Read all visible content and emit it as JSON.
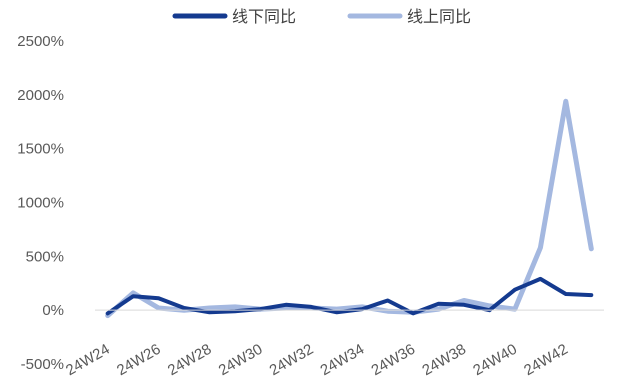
{
  "chart_data": {
    "type": "line",
    "categories": [
      "24W24",
      "24W25",
      "24W26",
      "24W27",
      "24W28",
      "24W29",
      "24W30",
      "24W31",
      "24W32",
      "24W33",
      "24W34",
      "24W35",
      "24W36",
      "24W37",
      "24W38",
      "24W39",
      "24W40",
      "24W41",
      "24W42",
      "24W43"
    ],
    "x_tick_labels": [
      "24W24",
      "24W26",
      "24W28",
      "24W30",
      "24W32",
      "24W34",
      "24W36",
      "24W38",
      "24W40",
      "24W42"
    ],
    "y_ticks": [
      -500,
      0,
      500,
      1000,
      1500,
      2000,
      2500
    ],
    "y_tick_labels": [
      "-500%",
      "0%",
      "500%",
      "1000%",
      "1500%",
      "2000%",
      "2500%"
    ],
    "ylim": [
      -500,
      2500
    ],
    "unit": "%",
    "grid": false,
    "legend_position": "top-center",
    "series": [
      {
        "name": "线下同比",
        "color": "#143a8f",
        "values": [
          -30,
          130,
          110,
          20,
          -20,
          -10,
          10,
          50,
          30,
          -20,
          10,
          90,
          -30,
          60,
          50,
          0,
          190,
          290,
          150,
          140
        ]
      },
      {
        "name": "线上同比",
        "color": "#a4b8e0",
        "values": [
          -50,
          160,
          20,
          0,
          20,
          30,
          10,
          20,
          20,
          10,
          30,
          -10,
          -20,
          10,
          90,
          40,
          10,
          580,
          1940,
          570
        ]
      }
    ],
    "title": "",
    "xlabel": "",
    "ylabel": ""
  }
}
